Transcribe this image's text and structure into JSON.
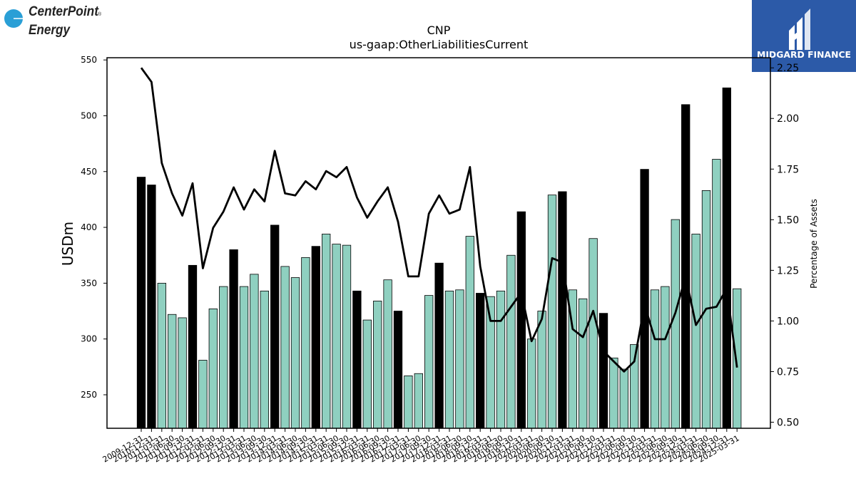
{
  "logos": {
    "left_line1": "CenterPoint",
    "left_line2": "Energy",
    "left_mark": "®",
    "right_text": "MIDGARD FINANCE",
    "right_bg": "#2c5aa8",
    "left_color": "#2a9fd6"
  },
  "chart_data": {
    "type": "bar",
    "title": "CNP",
    "subtitle": "us-gaap:OtherLiabilitiesCurrent",
    "ylabel": "USDm",
    "y2label": "Percentage of Assets",
    "ylim": [
      220,
      552
    ],
    "y2lim": [
      0.47,
      2.3
    ],
    "yticks": [
      250,
      300,
      350,
      400,
      450,
      500,
      550
    ],
    "y2ticks": [
      "0.50",
      "0.75",
      "1.00",
      "1.25",
      "1.50",
      "1.75",
      "2.00",
      "2.25"
    ],
    "colors": {
      "annual": "#000000",
      "quarterly": "#8fd0c0",
      "line": "#000000"
    },
    "categories": [
      "2009-12-31",
      "2010-12-31",
      "2011-03-31",
      "2011-06-30",
      "2011-09-30",
      "2011-12-31",
      "2012-03-31",
      "2012-06-30",
      "2012-09-30",
      "2012-12-31",
      "2013-03-31",
      "2013-06-30",
      "2013-09-30",
      "2013-12-31",
      "2014-03-31",
      "2014-06-30",
      "2014-09-30",
      "2014-12-31",
      "2015-03-31",
      "2015-06-30",
      "2015-09-30",
      "2015-12-31",
      "2016-03-31",
      "2016-06-30",
      "2016-09-30",
      "2016-12-31",
      "2017-03-31",
      "2017-06-30",
      "2017-09-30",
      "2017-12-31",
      "2018-03-31",
      "2018-06-30",
      "2018-09-30",
      "2018-12-31",
      "2019-03-31",
      "2019-06-30",
      "2019-09-30",
      "2019-12-31",
      "2020-03-31",
      "2020-06-30",
      "2020-09-30",
      "2020-12-31",
      "2021-03-31",
      "2021-06-30",
      "2021-09-30",
      "2021-12-31",
      "2022-03-31",
      "2022-06-30",
      "2022-09-30",
      "2022-12-31",
      "2023-03-31",
      "2023-06-30",
      "2023-09-30",
      "2023-12-31",
      "2024-03-31",
      "2024-06-30",
      "2024-09-30",
      "2024-12-31",
      "2025-03-31"
    ],
    "values": [
      445,
      438,
      350,
      322,
      319,
      366,
      281,
      327,
      347,
      380,
      347,
      358,
      343,
      402,
      365,
      355,
      373,
      383,
      394,
      385,
      384,
      343,
      317,
      334,
      353,
      325,
      267,
      269,
      339,
      368,
      343,
      344,
      392,
      341,
      338,
      343,
      375,
      414,
      300,
      325,
      429,
      432,
      344,
      336,
      390,
      323,
      283,
      273,
      295,
      452,
      344,
      347,
      407,
      510,
      394,
      433,
      461,
      525,
      345
    ],
    "annual": [
      true,
      true,
      false,
      false,
      false,
      true,
      false,
      false,
      false,
      true,
      false,
      false,
      false,
      true,
      false,
      false,
      false,
      true,
      false,
      false,
      false,
      true,
      false,
      false,
      false,
      true,
      false,
      false,
      false,
      true,
      false,
      false,
      false,
      true,
      false,
      false,
      false,
      true,
      false,
      false,
      false,
      true,
      false,
      false,
      false,
      true,
      false,
      false,
      false,
      true,
      false,
      false,
      false,
      true,
      false,
      false,
      false,
      true,
      false
    ],
    "pct_of_assets": [
      2.25,
      2.18,
      1.78,
      1.63,
      1.52,
      1.68,
      1.26,
      1.46,
      1.54,
      1.66,
      1.55,
      1.65,
      1.59,
      1.84,
      1.63,
      1.62,
      1.69,
      1.65,
      1.74,
      1.71,
      1.76,
      1.61,
      1.51,
      1.59,
      1.66,
      1.49,
      1.22,
      1.22,
      1.53,
      1.62,
      1.53,
      1.55,
      1.76,
      1.27,
      1.0,
      1.0,
      1.07,
      1.14,
      0.9,
      1.01,
      1.31,
      1.29,
      0.96,
      0.92,
      1.05,
      0.85,
      0.8,
      0.75,
      0.8,
      1.08,
      0.91,
      0.91,
      1.04,
      1.22,
      0.98,
      1.06,
      1.07,
      1.16,
      0.77
    ]
  }
}
